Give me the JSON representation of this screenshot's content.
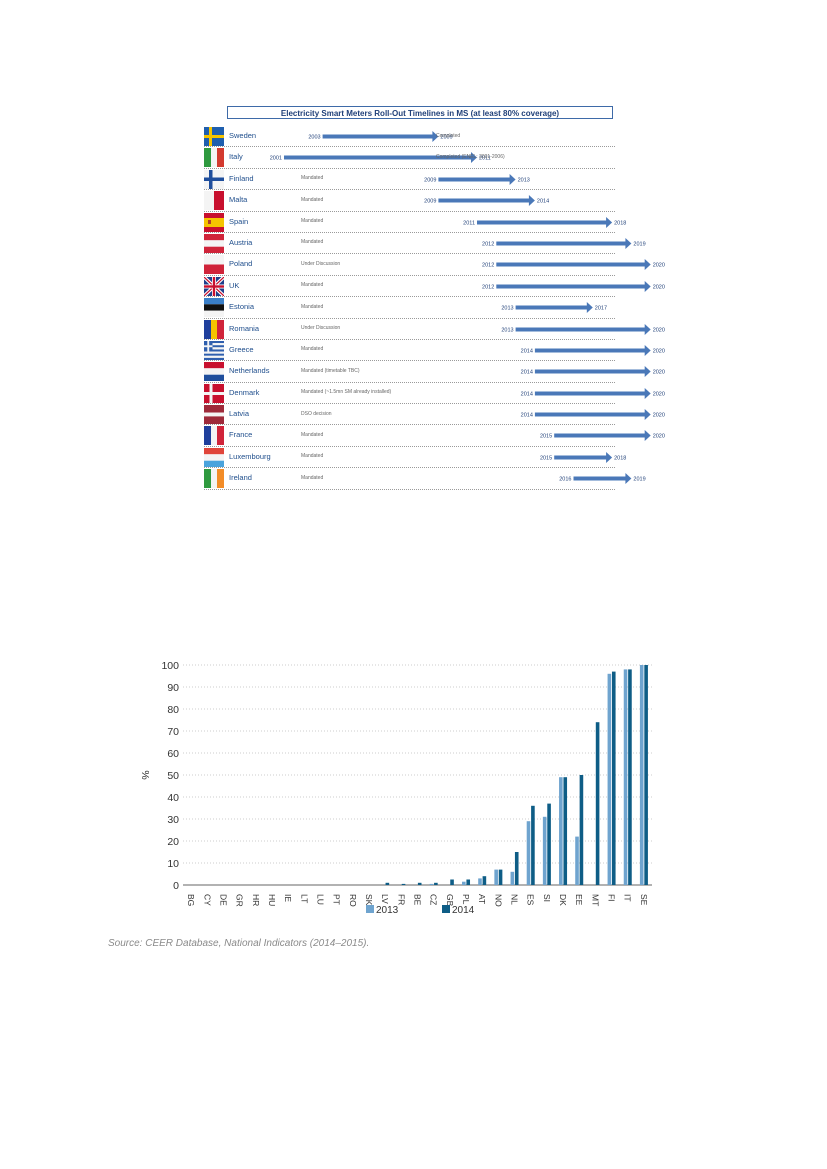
{
  "timeline": {
    "title": "Electricity Smart Meters Roll-Out Timelines in MS (at least 80% coverage)",
    "rows": [
      {
        "country": "Sweden",
        "status": "",
        "start": 2003,
        "end": 2009,
        "note": "Completed",
        "flag": "sweden"
      },
      {
        "country": "Italy",
        "status": "",
        "start": 2001,
        "end": 2011,
        "note": "Completed (ENEL: 2001-2006)",
        "flag": "italy"
      },
      {
        "country": "Finland",
        "status": "Mandated",
        "start": 2009,
        "end": 2013,
        "note": "",
        "flag": "finland"
      },
      {
        "country": "Malta",
        "status": "Mandated",
        "start": 2009,
        "end": 2014,
        "note": "",
        "flag": "malta"
      },
      {
        "country": "Spain",
        "status": "Mandated",
        "start": 2011,
        "end": 2018,
        "note": "",
        "flag": "spain"
      },
      {
        "country": "Austria",
        "status": "Mandated",
        "start": 2012,
        "end": 2019,
        "note": "",
        "flag": "austria"
      },
      {
        "country": "Poland",
        "status": "Under Discussion",
        "start": 2012,
        "end": 2020,
        "note": "",
        "flag": "poland"
      },
      {
        "country": "UK",
        "status": "Mandated",
        "start": 2012,
        "end": 2020,
        "note": "",
        "flag": "uk"
      },
      {
        "country": "Estonia",
        "status": "Mandated",
        "start": 2013,
        "end": 2017,
        "note": "",
        "flag": "estonia"
      },
      {
        "country": "Romania",
        "status": "Under Discussion",
        "start": 2013,
        "end": 2020,
        "note": "",
        "flag": "romania"
      },
      {
        "country": "Greece",
        "status": "Mandated",
        "start": 2014,
        "end": 2020,
        "note": "",
        "flag": "greece"
      },
      {
        "country": "Netherlands",
        "status": "Mandated (timetable TBC)",
        "start": 2014,
        "end": 2020,
        "note": "",
        "flag": "netherlands"
      },
      {
        "country": "Denmark",
        "status": "Mandated (~1.5mn SM already installed)",
        "start": 2014,
        "end": 2020,
        "note": "",
        "flag": "denmark"
      },
      {
        "country": "Latvia",
        "status": "DSO decision",
        "start": 2014,
        "end": 2020,
        "note": "",
        "flag": "latvia"
      },
      {
        "country": "France",
        "status": "Mandated",
        "start": 2015,
        "end": 2020,
        "note": "",
        "flag": "france"
      },
      {
        "country": "Luxembourg",
        "status": "Mandated",
        "start": 2015,
        "end": 2018,
        "note": "",
        "flag": "luxembourg"
      },
      {
        "country": "Ireland",
        "status": "Mandated",
        "start": 2016,
        "end": 2019,
        "note": "",
        "flag": "ireland"
      }
    ],
    "colors": {
      "arrow": "#4a78b8",
      "arrow_dark": "#2f5a99"
    }
  },
  "chart_data": {
    "type": "bar",
    "categories": [
      "BG",
      "CY",
      "DE",
      "GR",
      "HR",
      "HU",
      "IE",
      "LT",
      "LU",
      "PT",
      "RO",
      "SK",
      "LV",
      "FR",
      "BE",
      "CZ",
      "GB",
      "PL",
      "AT",
      "NO",
      "NL",
      "ES",
      "SI",
      "DK",
      "EE",
      "MT",
      "FI",
      "IT",
      "SE"
    ],
    "series": [
      {
        "name": "2013",
        "color": "#6fa4cf",
        "values": [
          0,
          0,
          0,
          0,
          0,
          0,
          0,
          0,
          0,
          0,
          0,
          0,
          0,
          0,
          0,
          0.5,
          0,
          1.5,
          3,
          7,
          6,
          29,
          31,
          49,
          22,
          0,
          96,
          98,
          100
        ]
      },
      {
        "name": "2014",
        "color": "#0e5d86",
        "values": [
          0,
          0,
          0,
          0,
          0,
          0,
          0,
          0,
          0,
          0,
          0,
          0,
          1,
          0.5,
          1,
          1,
          2.5,
          2.5,
          4,
          7,
          15,
          36,
          37,
          49,
          50,
          74,
          97,
          98,
          100
        ]
      }
    ],
    "ylabel": "%",
    "ylim": [
      0,
      100
    ],
    "yticks": [
      0,
      10,
      20,
      30,
      40,
      50,
      60,
      70,
      80,
      90,
      100
    ],
    "grid": true,
    "legend": "bottom"
  },
  "source": "Source: CEER Database, National Indicators (2014–2015)."
}
